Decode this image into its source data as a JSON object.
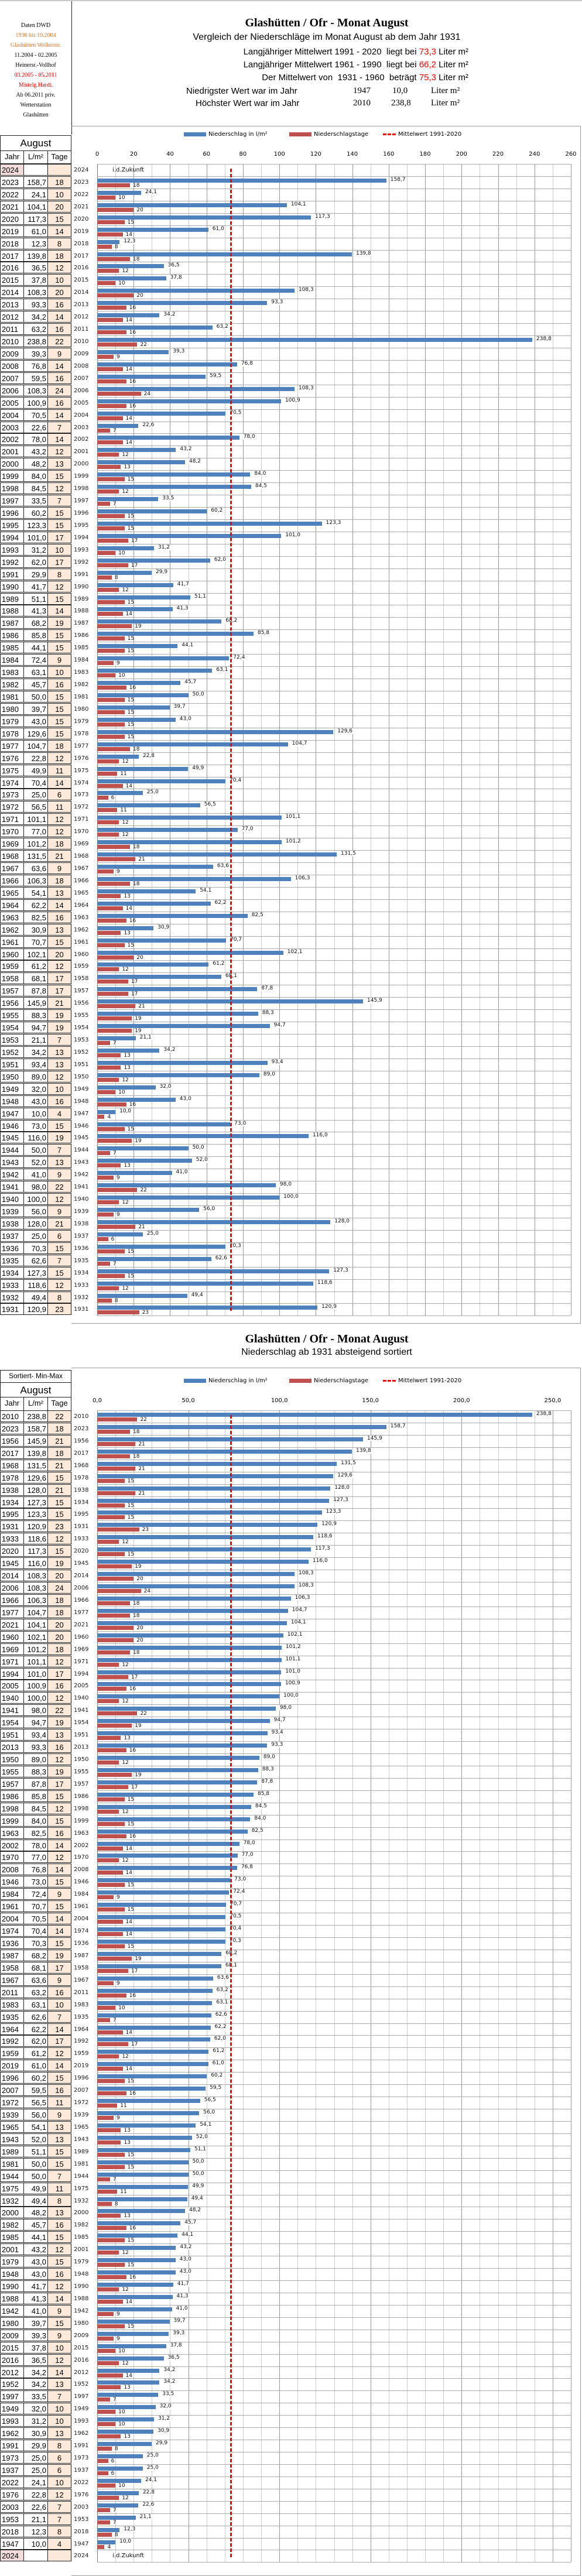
{
  "sidebar": {
    "lines": [
      "Daten DWD",
      "1936 bis 10.2004",
      "Glashütten Weiherstr.",
      "11.2004 - 02.2005",
      "Heinersr.-Vollhof",
      "03.2005 - 05.2011",
      "Mistelg.Hardt.",
      "Ab 06.2011 priv.",
      "Wetterstation",
      "Glashütten"
    ],
    "colors": [
      "#000",
      "#e87722",
      "#e87722",
      "#000",
      "#000",
      "#f00",
      "#f00",
      "#000",
      "#000",
      "#000"
    ]
  },
  "header": {
    "title": "Glashütten / Ofr - Monat August",
    "subtitle": "Vergleich der Niederschläge im  Monat August ab dem Jahr 1931",
    "l1a": "Langjähriger Mittelwert 1991 - 2020  liegt bei ",
    "l1v": "73,3",
    "l1u": " Liter m²",
    "l2a": "Langjähriger Mittelwert 1961 - 1990  liegt bei ",
    "l2v": "66,2",
    "l2u": " Liter m²",
    "l3a": "Der Mittelwert von  1931 - 1960  beträgt ",
    "l3v": "75,3",
    "l3u": " Liter m²",
    "min_label": "Niedrigster Wert war im Jahr",
    "min_year": "1947",
    "min_value": "10,0",
    "min_unit": "Liter m²",
    "max_label": "Höchster Wert war im Jahr",
    "max_year": "2010",
    "max_value": "238,8",
    "max_unit": "Liter m²"
  },
  "table": {
    "month": "August",
    "col_year": "Jahr",
    "col_value": "L/m²",
    "col_days": "Tage",
    "sorted_header": "Sortiert- Min-Max"
  },
  "section2": {
    "title": "Glashütten / Ofr - Monat August",
    "subtitle": "Niederschlag ab 1931 absteigend sortiert"
  },
  "colors": {
    "precip": "#4f81bd",
    "days": "#c0504d",
    "mean": "#ff0000"
  },
  "chart_data": [
    {
      "type": "bar",
      "orientation": "horizontal",
      "title": "Glashütten / Ofr - Monat August",
      "legend": [
        "Niederschlag  in  l/m²",
        "Niederschlagstage",
        "Mittelwert 1991-2020"
      ],
      "legend_position": "top",
      "xlim": [
        0,
        260
      ],
      "ticks": [
        "0",
        "20",
        "40",
        "60",
        "80",
        "100",
        "120",
        "140",
        "160",
        "180",
        "200",
        "220",
        "240",
        "260"
      ],
      "mean": 73.3,
      "future_label": "i.d.Zukunft",
      "order": "year-desc"
    },
    {
      "type": "bar",
      "orientation": "horizontal",
      "title": "Niederschlag ab 1931 absteigend sortiert",
      "legend": [
        "Niederschlag  in  l/m²",
        "Niederschlagstage",
        "Mittelwert 1991-2020"
      ],
      "legend_position": "top",
      "xlim": [
        0,
        260
      ],
      "ticks": [
        "0,0",
        "50,0",
        "100,0",
        "150,0",
        "200,0",
        "250,0"
      ],
      "mean": 73.3,
      "future_label": "i.d.Zukunft",
      "order": "value-desc"
    }
  ],
  "rows": [
    [
      2024,
      null,
      null
    ],
    [
      2023,
      158.7,
      18
    ],
    [
      2022,
      24.1,
      10
    ],
    [
      2021,
      104.1,
      20
    ],
    [
      2020,
      117.3,
      15
    ],
    [
      2019,
      61.0,
      14
    ],
    [
      2018,
      12.3,
      8
    ],
    [
      2017,
      139.8,
      18
    ],
    [
      2016,
      36.5,
      12
    ],
    [
      2015,
      37.8,
      10
    ],
    [
      2014,
      108.3,
      20
    ],
    [
      2013,
      93.3,
      16
    ],
    [
      2012,
      34.2,
      14
    ],
    [
      2011,
      63.2,
      16
    ],
    [
      2010,
      238.8,
      22
    ],
    [
      2009,
      39.3,
      9
    ],
    [
      2008,
      76.8,
      14
    ],
    [
      2007,
      59.5,
      16
    ],
    [
      2006,
      108.3,
      24
    ],
    [
      2005,
      100.9,
      16
    ],
    [
      2004,
      70.5,
      14
    ],
    [
      2003,
      22.6,
      7
    ],
    [
      2002,
      78.0,
      14
    ],
    [
      2001,
      43.2,
      12
    ],
    [
      2000,
      48.2,
      13
    ],
    [
      1999,
      84.0,
      15
    ],
    [
      1998,
      84.5,
      12
    ],
    [
      1997,
      33.5,
      7
    ],
    [
      1996,
      60.2,
      15
    ],
    [
      1995,
      123.3,
      15
    ],
    [
      1994,
      101.0,
      17
    ],
    [
      1993,
      31.2,
      10
    ],
    [
      1992,
      62.0,
      17
    ],
    [
      1991,
      29.9,
      8
    ],
    [
      1990,
      41.7,
      12
    ],
    [
      1989,
      51.1,
      15
    ],
    [
      1988,
      41.3,
      14
    ],
    [
      1987,
      68.2,
      19
    ],
    [
      1986,
      85.8,
      15
    ],
    [
      1985,
      44.1,
      15
    ],
    [
      1984,
      72.4,
      9
    ],
    [
      1983,
      63.1,
      10
    ],
    [
      1982,
      45.7,
      16
    ],
    [
      1981,
      50.0,
      15
    ],
    [
      1980,
      39.7,
      15
    ],
    [
      1979,
      43.0,
      15
    ],
    [
      1978,
      129.6,
      15
    ],
    [
      1977,
      104.7,
      18
    ],
    [
      1976,
      22.8,
      12
    ],
    [
      1975,
      49.9,
      11
    ],
    [
      1974,
      70.4,
      14
    ],
    [
      1973,
      25.0,
      6
    ],
    [
      1972,
      56.5,
      11
    ],
    [
      1971,
      101.1,
      12
    ],
    [
      1970,
      77.0,
      12
    ],
    [
      1969,
      101.2,
      18
    ],
    [
      1968,
      131.5,
      21
    ],
    [
      1967,
      63.6,
      9
    ],
    [
      1966,
      106.3,
      18
    ],
    [
      1965,
      54.1,
      13
    ],
    [
      1964,
      62.2,
      14
    ],
    [
      1963,
      82.5,
      16
    ],
    [
      1962,
      30.9,
      13
    ],
    [
      1961,
      70.7,
      15
    ],
    [
      1960,
      102.1,
      20
    ],
    [
      1959,
      61.2,
      12
    ],
    [
      1958,
      68.1,
      17
    ],
    [
      1957,
      87.8,
      17
    ],
    [
      1956,
      145.9,
      21
    ],
    [
      1955,
      88.3,
      19
    ],
    [
      1954,
      94.7,
      19
    ],
    [
      1953,
      21.1,
      7
    ],
    [
      1952,
      34.2,
      13
    ],
    [
      1951,
      93.4,
      13
    ],
    [
      1950,
      89.0,
      12
    ],
    [
      1949,
      32.0,
      10
    ],
    [
      1948,
      43.0,
      16
    ],
    [
      1947,
      10.0,
      4
    ],
    [
      1946,
      73.0,
      15
    ],
    [
      1945,
      116.0,
      19
    ],
    [
      1944,
      50.0,
      7
    ],
    [
      1943,
      52.0,
      13
    ],
    [
      1942,
      41.0,
      9
    ],
    [
      1941,
      98.0,
      22
    ],
    [
      1940,
      100.0,
      12
    ],
    [
      1939,
      56.0,
      9
    ],
    [
      1938,
      128.0,
      21
    ],
    [
      1937,
      25.0,
      6
    ],
    [
      1936,
      70.3,
      15
    ],
    [
      1935,
      62.6,
      7
    ],
    [
      1934,
      127.3,
      15
    ],
    [
      1933,
      118.6,
      12
    ],
    [
      1932,
      49.4,
      8
    ],
    [
      1931,
      120.9,
      23
    ]
  ]
}
